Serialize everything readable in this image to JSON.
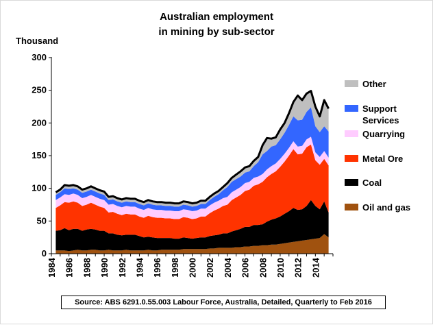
{
  "chart_data": {
    "type": "area",
    "stacked": true,
    "title": [
      "Australian employment",
      "in mining by sub-sector"
    ],
    "ylabel": "Thousand",
    "xlabel": "",
    "ylim": [
      0,
      300
    ],
    "yticks": [
      0,
      50,
      100,
      150,
      200,
      250,
      300
    ],
    "xlim": [
      1984,
      2016
    ],
    "xticks": [
      "1984",
      "1986",
      "1988",
      "1990",
      "1992",
      "1994",
      "1996",
      "1998",
      "2000",
      "2002",
      "2004",
      "2006",
      "2008",
      "2010",
      "2012",
      "2014"
    ],
    "grid": false,
    "legend_position": "right",
    "total_line_color": "#000000",
    "x": [
      1984.5,
      1985,
      1985.5,
      1986,
      1986.5,
      1987,
      1987.5,
      1988,
      1988.5,
      1989,
      1989.5,
      1990,
      1990.5,
      1991,
      1991.5,
      1992,
      1992.5,
      1993,
      1993.5,
      1994,
      1994.5,
      1995,
      1995.5,
      1996,
      1996.5,
      1997,
      1997.5,
      1998,
      1998.5,
      1999,
      1999.5,
      2000,
      2000.5,
      2001,
      2001.5,
      2002,
      2002.5,
      2003,
      2003.5,
      2004,
      2004.5,
      2005,
      2005.5,
      2006,
      2006.5,
      2007,
      2007.5,
      2008,
      2008.5,
      2009,
      2009.5,
      2010,
      2010.5,
      2011,
      2011.5,
      2012,
      2012.5,
      2013,
      2013.5,
      2014,
      2014.5,
      2015,
      2015.5
    ],
    "series": [
      {
        "name": "Oil and gas",
        "color": "#a0520f",
        "values": [
          5,
          5,
          5,
          4,
          5,
          6,
          5,
          5,
          6,
          6,
          5,
          5,
          6,
          5,
          5,
          5,
          6,
          5,
          5,
          5,
          5,
          6,
          5,
          5,
          6,
          6,
          6,
          6,
          6,
          7,
          7,
          7,
          7,
          7,
          7,
          8,
          8,
          9,
          9,
          9,
          9,
          10,
          10,
          11,
          11,
          12,
          12,
          13,
          13,
          14,
          14,
          15,
          16,
          17,
          18,
          19,
          20,
          21,
          22,
          23,
          24,
          30,
          25
        ]
      },
      {
        "name": "Coal",
        "color": "#000000",
        "values": [
          30,
          31,
          34,
          32,
          33,
          32,
          30,
          32,
          32,
          31,
          30,
          30,
          25,
          26,
          24,
          23,
          23,
          24,
          24,
          22,
          20,
          20,
          20,
          19,
          18,
          18,
          18,
          17,
          17,
          18,
          17,
          16,
          17,
          18,
          18,
          19,
          20,
          20,
          22,
          22,
          25,
          26,
          28,
          30,
          30,
          32,
          32,
          32,
          36,
          38,
          40,
          42,
          45,
          48,
          52,
          48,
          48,
          52,
          60,
          50,
          44,
          50,
          38
        ]
      },
      {
        "name": "Metal Ore",
        "color": "#ff3300",
        "values": [
          35,
          38,
          40,
          42,
          42,
          40,
          38,
          38,
          40,
          38,
          37,
          35,
          32,
          33,
          32,
          31,
          32,
          31,
          31,
          30,
          30,
          32,
          31,
          31,
          31,
          30,
          30,
          30,
          30,
          31,
          31,
          30,
          30,
          32,
          32,
          35,
          38,
          40,
          42,
          44,
          48,
          50,
          52,
          55,
          57,
          60,
          62,
          65,
          68,
          70,
          72,
          76,
          80,
          85,
          90,
          85,
          85,
          90,
          85,
          70,
          68,
          65,
          72
        ]
      },
      {
        "name": "Quarrying",
        "color": "#ffccff",
        "values": [
          12,
          12,
          12,
          12,
          12,
          12,
          12,
          12,
          12,
          12,
          12,
          12,
          12,
          12,
          12,
          12,
          12,
          12,
          12,
          12,
          12,
          12,
          12,
          12,
          12,
          12,
          12,
          12,
          12,
          12,
          12,
          12,
          12,
          12,
          12,
          12,
          12,
          12,
          12,
          12,
          12,
          12,
          12,
          12,
          12,
          12,
          12,
          12,
          12,
          12,
          12,
          12,
          12,
          12,
          12,
          12,
          12,
          12,
          12,
          12,
          12,
          12,
          12
        ]
      },
      {
        "name": "Support Services",
        "color": "#3366ff",
        "values": [
          8,
          8,
          9,
          9,
          8,
          8,
          8,
          8,
          8,
          8,
          8,
          8,
          7,
          7,
          7,
          7,
          7,
          7,
          7,
          7,
          7,
          7,
          7,
          7,
          7,
          7,
          7,
          7,
          7,
          7,
          7,
          7,
          7,
          7,
          7,
          8,
          9,
          10,
          12,
          15,
          16,
          16,
          16,
          16,
          16,
          18,
          22,
          30,
          28,
          30,
          28,
          30,
          32,
          35,
          38,
          40,
          40,
          42,
          45,
          40,
          38,
          38,
          40
        ]
      },
      {
        "name": "Other",
        "color": "#bfbfbf",
        "values": [
          4,
          4,
          5,
          5,
          5,
          5,
          5,
          5,
          5,
          5,
          5,
          5,
          5,
          5,
          5,
          5,
          5,
          5,
          5,
          5,
          5,
          5,
          5,
          5,
          5,
          5,
          5,
          5,
          5,
          5,
          5,
          5,
          5,
          5,
          5,
          5,
          5,
          5,
          5,
          6,
          6,
          7,
          8,
          8,
          8,
          8,
          8,
          14,
          20,
          12,
          12,
          15,
          15,
          18,
          22,
          38,
          30,
          28,
          25,
          30,
          24,
          40,
          35
        ]
      }
    ],
    "legend": [
      {
        "label": "Other",
        "color": "#bfbfbf"
      },
      {
        "label": "Support",
        "label2": "Services",
        "color": "#3366ff"
      },
      {
        "label": "Quarrying",
        "color": "#ffccff"
      },
      {
        "label": "Metal Ore",
        "color": "#ff3300"
      },
      {
        "label": "Coal",
        "color": "#000000"
      },
      {
        "label": "Oil and gas",
        "color": "#a0520f"
      }
    ],
    "source": "Source: ABS 6291.0.55.003 Labour Force, Australia, Detailed, Quarterly to Feb 2016"
  }
}
